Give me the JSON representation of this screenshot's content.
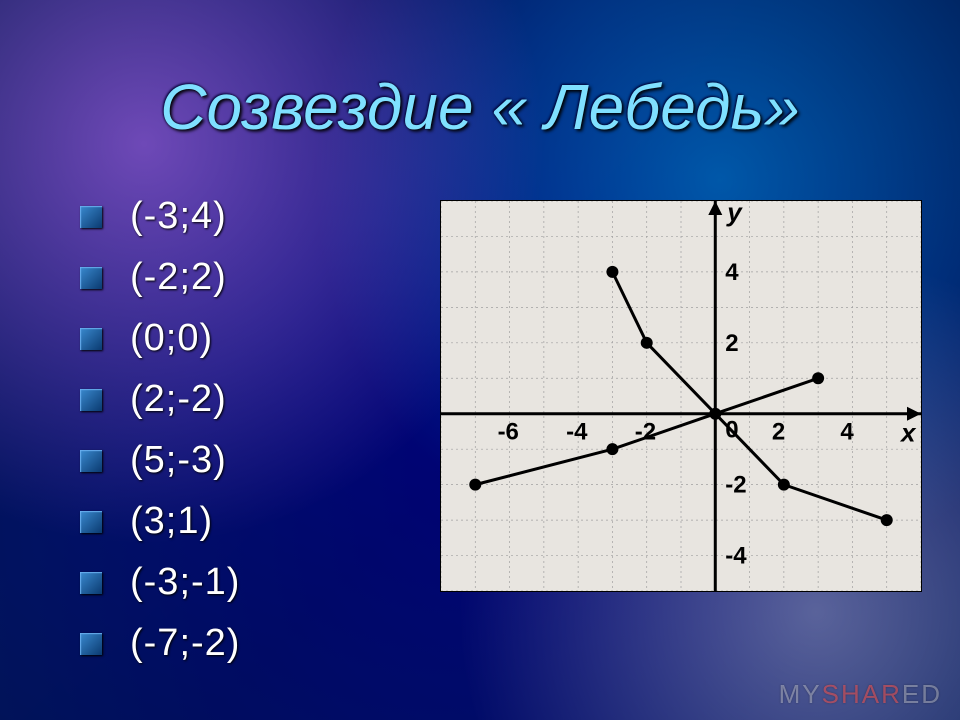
{
  "title": "Созвездие « Лебедь»",
  "bullets": [
    {
      "label": "(-3;4)"
    },
    {
      "label": "(-2;2)"
    },
    {
      "label": "(0;0)"
    },
    {
      "label": "(2;-2)"
    },
    {
      "label": "(5;-3)"
    },
    {
      "label": "(3;1)"
    },
    {
      "label": "(-3;-1)"
    },
    {
      "label": "(-7;-2)"
    }
  ],
  "watermark": {
    "pre": "MY",
    "accent": "SHAR",
    "post": "ED"
  },
  "chart": {
    "type": "scatter-line",
    "background": "#e8e5e0",
    "grid_color": "#a0a0a0",
    "axis_color": "#000000",
    "point_color": "#000000",
    "line_color": "#000000",
    "tick_label_fontsize": 24,
    "axis_label_fontsize": 26,
    "xlim": [
      -8,
      6
    ],
    "ylim": [
      -5,
      6
    ],
    "xticks": [
      {
        "v": -6,
        "l": "-6"
      },
      {
        "v": -4,
        "l": "-4"
      },
      {
        "v": -2,
        "l": "-2"
      },
      {
        "v": 0,
        "l": "0"
      },
      {
        "v": 2,
        "l": "2"
      },
      {
        "v": 4,
        "l": "4"
      }
    ],
    "yticks": [
      {
        "v": -4,
        "l": "-4"
      },
      {
        "v": -2,
        "l": "-2"
      },
      {
        "v": 2,
        "l": "2"
      },
      {
        "v": 4,
        "l": "4"
      }
    ],
    "xlabel": "x",
    "ylabel": "y",
    "point_radius": 6,
    "line_width": 3,
    "points": [
      {
        "x": -3,
        "y": 4
      },
      {
        "x": -2,
        "y": 2
      },
      {
        "x": 0,
        "y": 0
      },
      {
        "x": 2,
        "y": -2
      },
      {
        "x": 5,
        "y": -3
      },
      {
        "x": 3,
        "y": 1
      },
      {
        "x": -3,
        "y": -1
      },
      {
        "x": -7,
        "y": -2
      }
    ],
    "segments": [
      [
        [
          -3,
          4
        ],
        [
          -2,
          2
        ]
      ],
      [
        [
          -2,
          2
        ],
        [
          0,
          0
        ]
      ],
      [
        [
          0,
          0
        ],
        [
          2,
          -2
        ]
      ],
      [
        [
          2,
          -2
        ],
        [
          5,
          -3
        ]
      ],
      [
        [
          3,
          1
        ],
        [
          0,
          0
        ]
      ],
      [
        [
          0,
          0
        ],
        [
          -3,
          -1
        ]
      ],
      [
        [
          -3,
          -1
        ],
        [
          -7,
          -2
        ]
      ]
    ]
  }
}
